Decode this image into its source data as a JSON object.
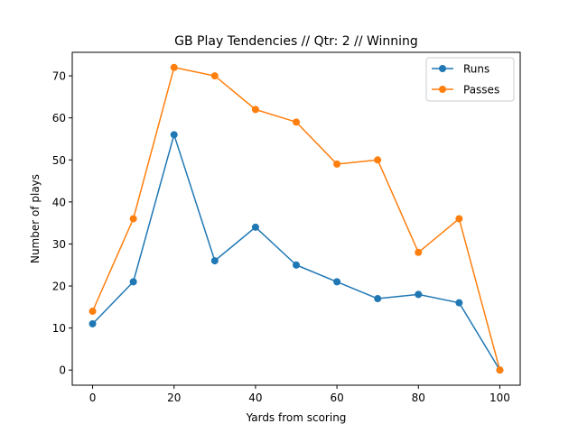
{
  "chart_data": {
    "type": "line",
    "title": "GB Play Tendencies // Qtr: 2 // Winning",
    "xlabel": "Yards from scoring",
    "ylabel": "Number of plays",
    "x": [
      0,
      10,
      20,
      30,
      40,
      50,
      60,
      70,
      80,
      90,
      100
    ],
    "xlim": [
      -5,
      105
    ],
    "ylim": [
      -3.6,
      75.6
    ],
    "xticks": [
      0,
      20,
      40,
      60,
      80,
      100
    ],
    "yticks": [
      0,
      10,
      20,
      30,
      40,
      50,
      60,
      70
    ],
    "grid": false,
    "legend_position": "upper right",
    "series": [
      {
        "name": "Runs",
        "color": "#1f77b4",
        "marker": "circle",
        "values": [
          11,
          21,
          56,
          26,
          34,
          25,
          21,
          17,
          18,
          16,
          0
        ]
      },
      {
        "name": "Passes",
        "color": "#ff7f0e",
        "marker": "circle",
        "values": [
          14,
          36,
          72,
          70,
          62,
          59,
          49,
          50,
          28,
          36,
          0
        ]
      }
    ]
  }
}
